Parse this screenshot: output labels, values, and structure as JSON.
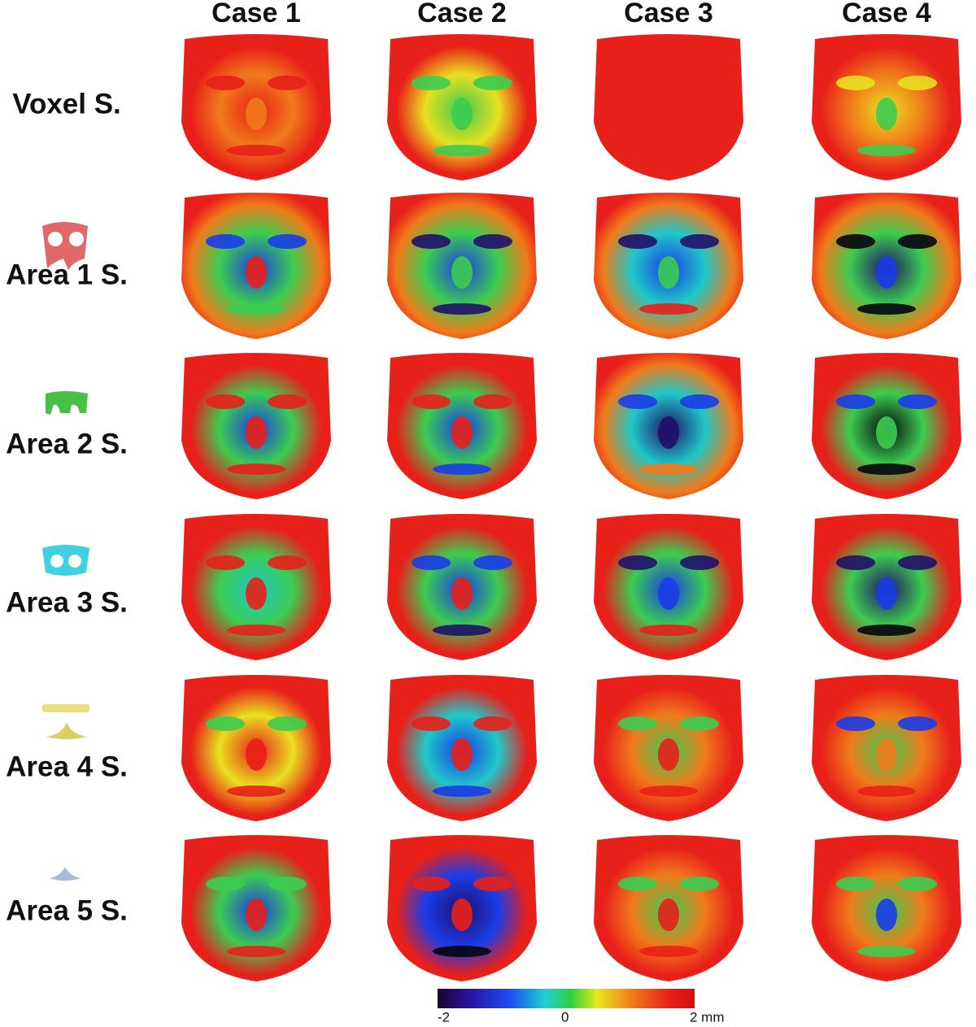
{
  "columns": [
    "Case 1",
    "Case 2",
    "Case 3",
    "Case 4"
  ],
  "rows": [
    "Voxel S.",
    "Area 1 S.",
    "Area 2 S.",
    "Area 3 S.",
    "Area 4 S.",
    "Area 5 S."
  ],
  "colorbar": {
    "labels": [
      "-2",
      "0",
      "2 mm"
    ]
  }
}
